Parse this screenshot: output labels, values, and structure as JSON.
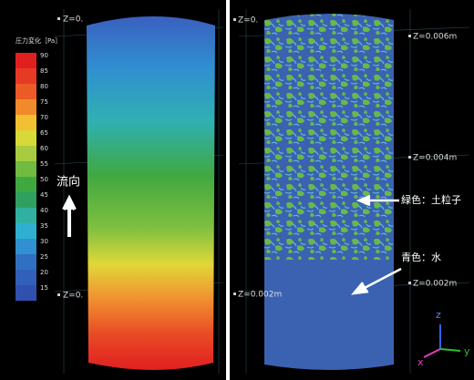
{
  "colorbar": {
    "title": "圧力変化［Pa］",
    "ticks": [
      90,
      85,
      80,
      75,
      70,
      65,
      60,
      55,
      50,
      45,
      40,
      35,
      30,
      25,
      20,
      15
    ],
    "colors": [
      "#e02020",
      "#e63a25",
      "#ec5a28",
      "#f08a2a",
      "#f2c030",
      "#d8d838",
      "#a8cc40",
      "#70bb40",
      "#40a840",
      "#30a060",
      "#30b0a0",
      "#30b0d0",
      "#3090d0",
      "#3070c0",
      "#3060b8",
      "#3050b0"
    ]
  },
  "left_panel": {
    "flow_label": "流向",
    "z_labels": [
      "Z=0.",
      "Z=0."
    ]
  },
  "right_panel": {
    "z_labels": [
      "Z=0.",
      "Z=0.006m",
      "Z=0.004m",
      "Z=0.002m",
      "Z=0.002m"
    ],
    "annotations": [
      "緑色：土粒子",
      "青色：水"
    ],
    "axes": [
      "z",
      "x",
      "y"
    ]
  }
}
